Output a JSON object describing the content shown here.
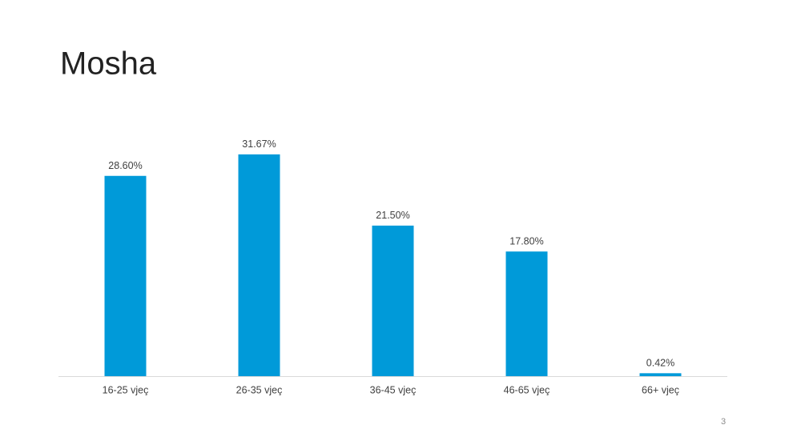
{
  "chart_data": {
    "type": "bar",
    "title": "Mosha",
    "categories": [
      "16-25 vjeç",
      "26-35 vjeç",
      "36-45 vjeç",
      "46-65 vjeç",
      "66+ vjeç"
    ],
    "values": [
      28.6,
      31.67,
      21.5,
      17.8,
      0.42
    ],
    "value_labels": [
      "28.60%",
      "31.67%",
      "21.50%",
      "17.80%",
      "0.42%"
    ],
    "color": "#009ad9"
  },
  "page_number": "3"
}
